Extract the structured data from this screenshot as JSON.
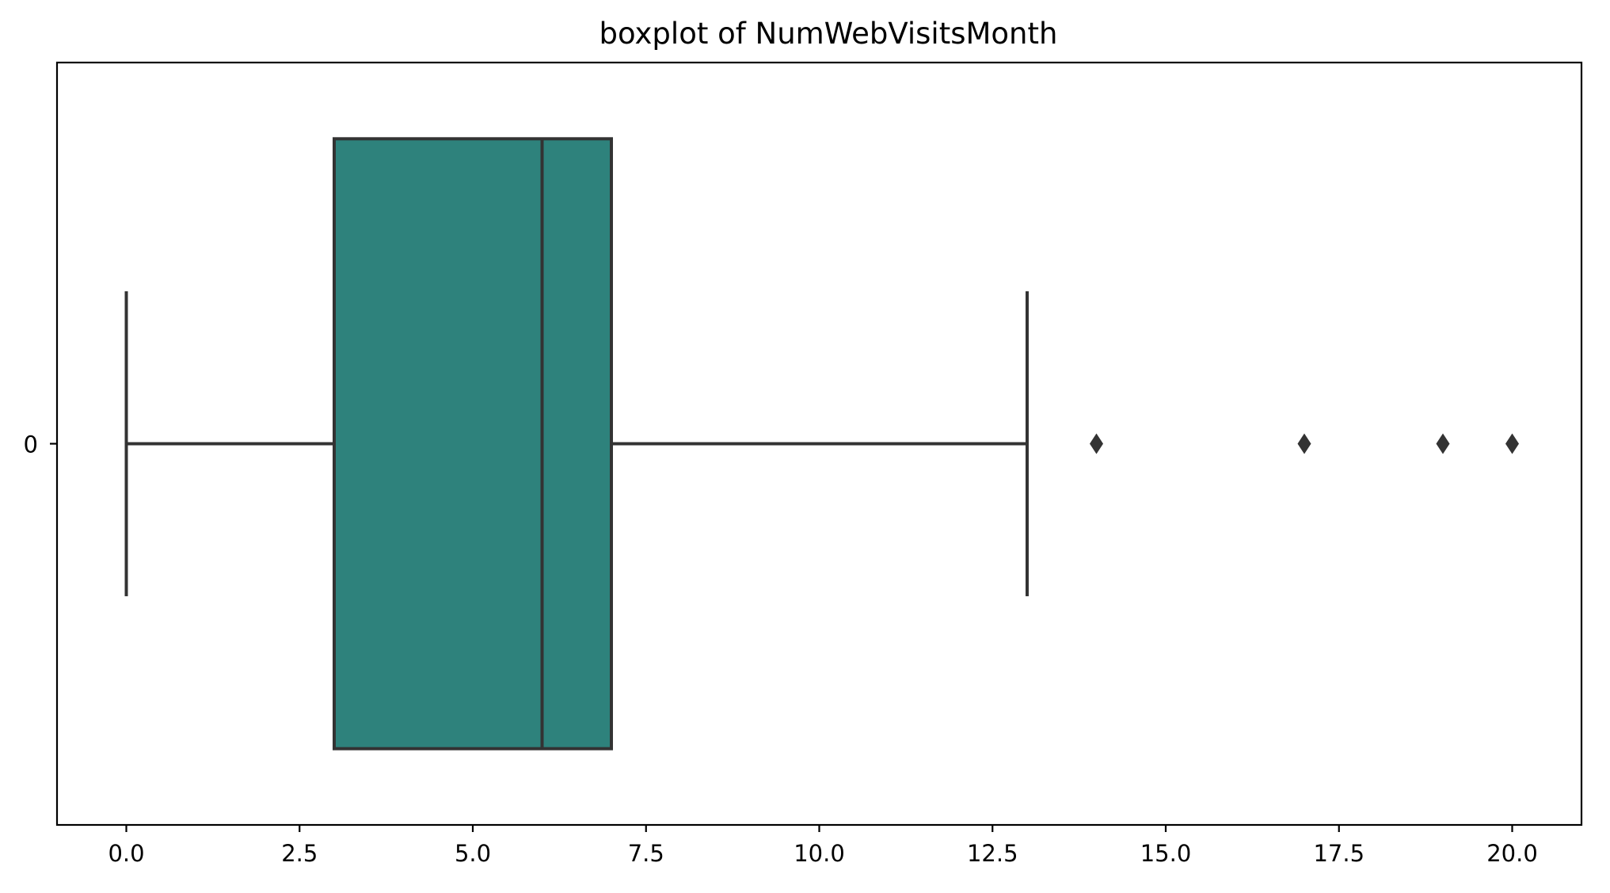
{
  "chart_data": {
    "type": "boxplot",
    "title": "boxplot of NumWebVisitsMonth",
    "xlabel": "",
    "ylabel": "",
    "orientation": "horizontal",
    "xlim": [
      -1.0,
      21.0
    ],
    "x_ticks": [
      0.0,
      2.5,
      5.0,
      7.5,
      10.0,
      12.5,
      15.0,
      17.5,
      20.0
    ],
    "x_tick_labels": [
      "0.0",
      "2.5",
      "5.0",
      "7.5",
      "10.0",
      "12.5",
      "15.0",
      "17.5",
      "20.0"
    ],
    "categories": [
      "0"
    ],
    "boxes": [
      {
        "category": "0",
        "whisker_low": 0,
        "q1": 3,
        "median": 6,
        "q3": 7,
        "whisker_high": 13,
        "outliers": [
          14,
          17,
          19,
          20
        ]
      }
    ],
    "grid": false,
    "colors": {
      "box_fill": "#2e827c",
      "line": "#333333",
      "axes": "#000000"
    }
  }
}
